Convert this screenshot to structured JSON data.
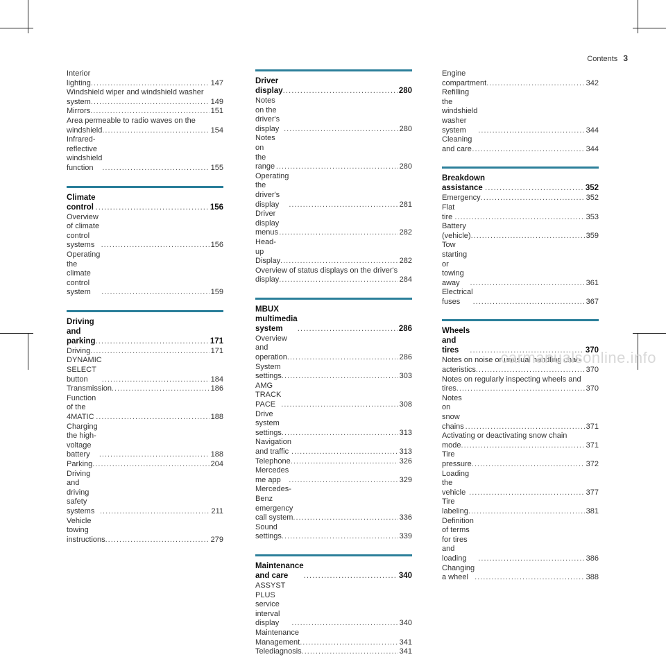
{
  "header": {
    "title": "Contents",
    "page": "3"
  },
  "columns": [
    {
      "sections": [
        {
          "title": null,
          "page": null,
          "entries": [
            {
              "text": "Interior lighting",
              "page": "147"
            },
            {
              "text": "Windshield wiper and windshield washer",
              "page": null
            },
            {
              "text": "system",
              "page": "149"
            },
            {
              "text": "Mirrors",
              "page": "151"
            },
            {
              "text": "Area permeable to radio waves on the",
              "page": null
            },
            {
              "text": "windshield",
              "page": "154"
            },
            {
              "text": "Infrared-reflective windshield function",
              "page": "155"
            }
          ]
        },
        {
          "title": "Climate control",
          "page": "156",
          "entries": [
            {
              "text": "Overview of climate control systems",
              "page": "156"
            },
            {
              "text": "Operating the climate control system",
              "page": "159"
            }
          ]
        },
        {
          "title": "Driving and parking",
          "page": "171",
          "entries": [
            {
              "text": "Driving",
              "page": "171"
            },
            {
              "text": "DYNAMIC SELECT button",
              "page": "184"
            },
            {
              "text": "Transmission",
              "page": "186"
            },
            {
              "text": "Function of the 4MATIC",
              "page": "188"
            },
            {
              "text": "Charging the high-voltage battery",
              "page": "188"
            },
            {
              "text": "Parking",
              "page": "204"
            },
            {
              "text": "Driving and driving safety systems",
              "page": "211"
            },
            {
              "text": "Vehicle towing instructions",
              "page": "279"
            }
          ]
        }
      ]
    },
    {
      "sections": [
        {
          "title": "Driver display",
          "page": "280",
          "entries": [
            {
              "text": "Notes on the driver's display",
              "page": "280"
            },
            {
              "text": "Notes on the range",
              "page": "280"
            },
            {
              "text": "Operating the driver's display",
              "page": "281"
            },
            {
              "text": "Driver display menus",
              "page": "282"
            },
            {
              "text": "Head-up Display",
              "page": "282"
            },
            {
              "text": "Overview of status displays on the driver's",
              "page": null
            },
            {
              "text": "display",
              "page": "284"
            }
          ]
        },
        {
          "title": "MBUX multimedia system",
          "page": "286",
          "entries": [
            {
              "text": "Overview and operation",
              "page": "286"
            },
            {
              "text": "System settings",
              "page": "303"
            },
            {
              "text": "AMG TRACK PACE",
              "page": "308"
            },
            {
              "text": "Drive system settings",
              "page": "313"
            },
            {
              "text": "Navigation and traffic",
              "page": "313"
            },
            {
              "text": "Telephone",
              "page": "326"
            },
            {
              "text": "Mercedes me app",
              "page": "329"
            },
            {
              "text": "Mercedes-Benz emergency call system",
              "page": "336"
            },
            {
              "text": "Sound settings",
              "page": "339"
            }
          ]
        },
        {
          "title": "Maintenance and care",
          "page": "340",
          "entries": [
            {
              "text": "ASSYST PLUS service interval display",
              "page": "340"
            },
            {
              "text": "Maintenance Management",
              "page": "341"
            },
            {
              "text": "Telediagnosis",
              "page": "341"
            }
          ]
        }
      ]
    },
    {
      "sections": [
        {
          "title": null,
          "page": null,
          "entries": [
            {
              "text": "Engine compartment",
              "page": "342"
            },
            {
              "text": "Refilling the windshield washer system",
              "page": "344"
            },
            {
              "text": "Cleaning and care",
              "page": "344"
            }
          ]
        },
        {
          "title": "Breakdown assistance",
          "page": "352",
          "entries": [
            {
              "text": "Emergency",
              "page": "352"
            },
            {
              "text": "Flat tire",
              "page": "353"
            },
            {
              "text": "Battery (vehicle)",
              "page": "359"
            },
            {
              "text": "Tow starting or towing away",
              "page": "361"
            },
            {
              "text": "Electrical fuses",
              "page": "367"
            }
          ]
        },
        {
          "title": "Wheels and tires",
          "page": "370",
          "entries": [
            {
              "text": "Notes on noise or unusual handling char-",
              "page": null
            },
            {
              "text": "acteristics",
              "page": "370"
            },
            {
              "text": "Notes on regularly inspecting wheels and",
              "page": null
            },
            {
              "text": "tires",
              "page": "370"
            },
            {
              "text": "Notes on snow chains",
              "page": "371"
            },
            {
              "text": "Activating or deactivating snow chain",
              "page": null
            },
            {
              "text": "mode",
              "page": "371"
            },
            {
              "text": "Tire pressure",
              "page": "372"
            },
            {
              "text": "Loading the vehicle",
              "page": "377"
            },
            {
              "text": "Tire labeling",
              "page": "381"
            },
            {
              "text": "Definition of terms for tires and loading",
              "page": "386"
            },
            {
              "text": "Changing a wheel",
              "page": "388"
            }
          ]
        }
      ]
    }
  ],
  "watermark": "carmanualsonline.info",
  "colors": {
    "accent_bar": "#2b7f9a"
  }
}
